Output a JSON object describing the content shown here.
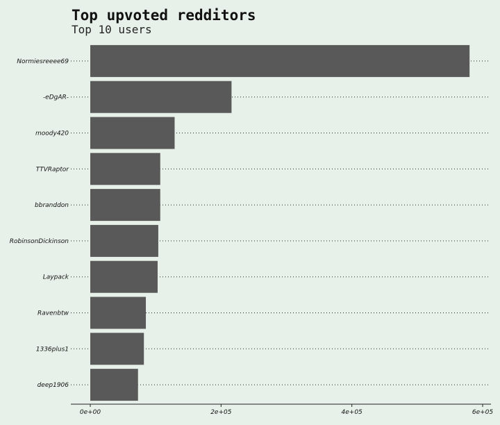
{
  "chart_data": {
    "type": "bar",
    "orientation": "horizontal",
    "title": "Top upvoted redditors",
    "subtitle": "Top 10 users",
    "xlabel": "",
    "ylabel": "",
    "categories": [
      "Normiesreeee69",
      "-eDgAR-",
      "moody420",
      "TTVRaptor",
      "bbranddon",
      "RobinsonDickinson",
      "Laypack",
      "Ravenbtw",
      "1336plus1",
      "deep1906"
    ],
    "values": [
      580000,
      216000,
      129000,
      107000,
      107000,
      104000,
      103000,
      85000,
      82000,
      73000
    ],
    "xlim": [
      0,
      600000
    ],
    "xticks": [
      0,
      200000,
      400000,
      600000
    ],
    "xtick_labels": [
      "0e+00",
      "2e+05",
      "4e+05",
      "6e+05"
    ],
    "bar_color": "#595959",
    "background": "#e8f1e9",
    "grid": "dotted horizontal"
  }
}
